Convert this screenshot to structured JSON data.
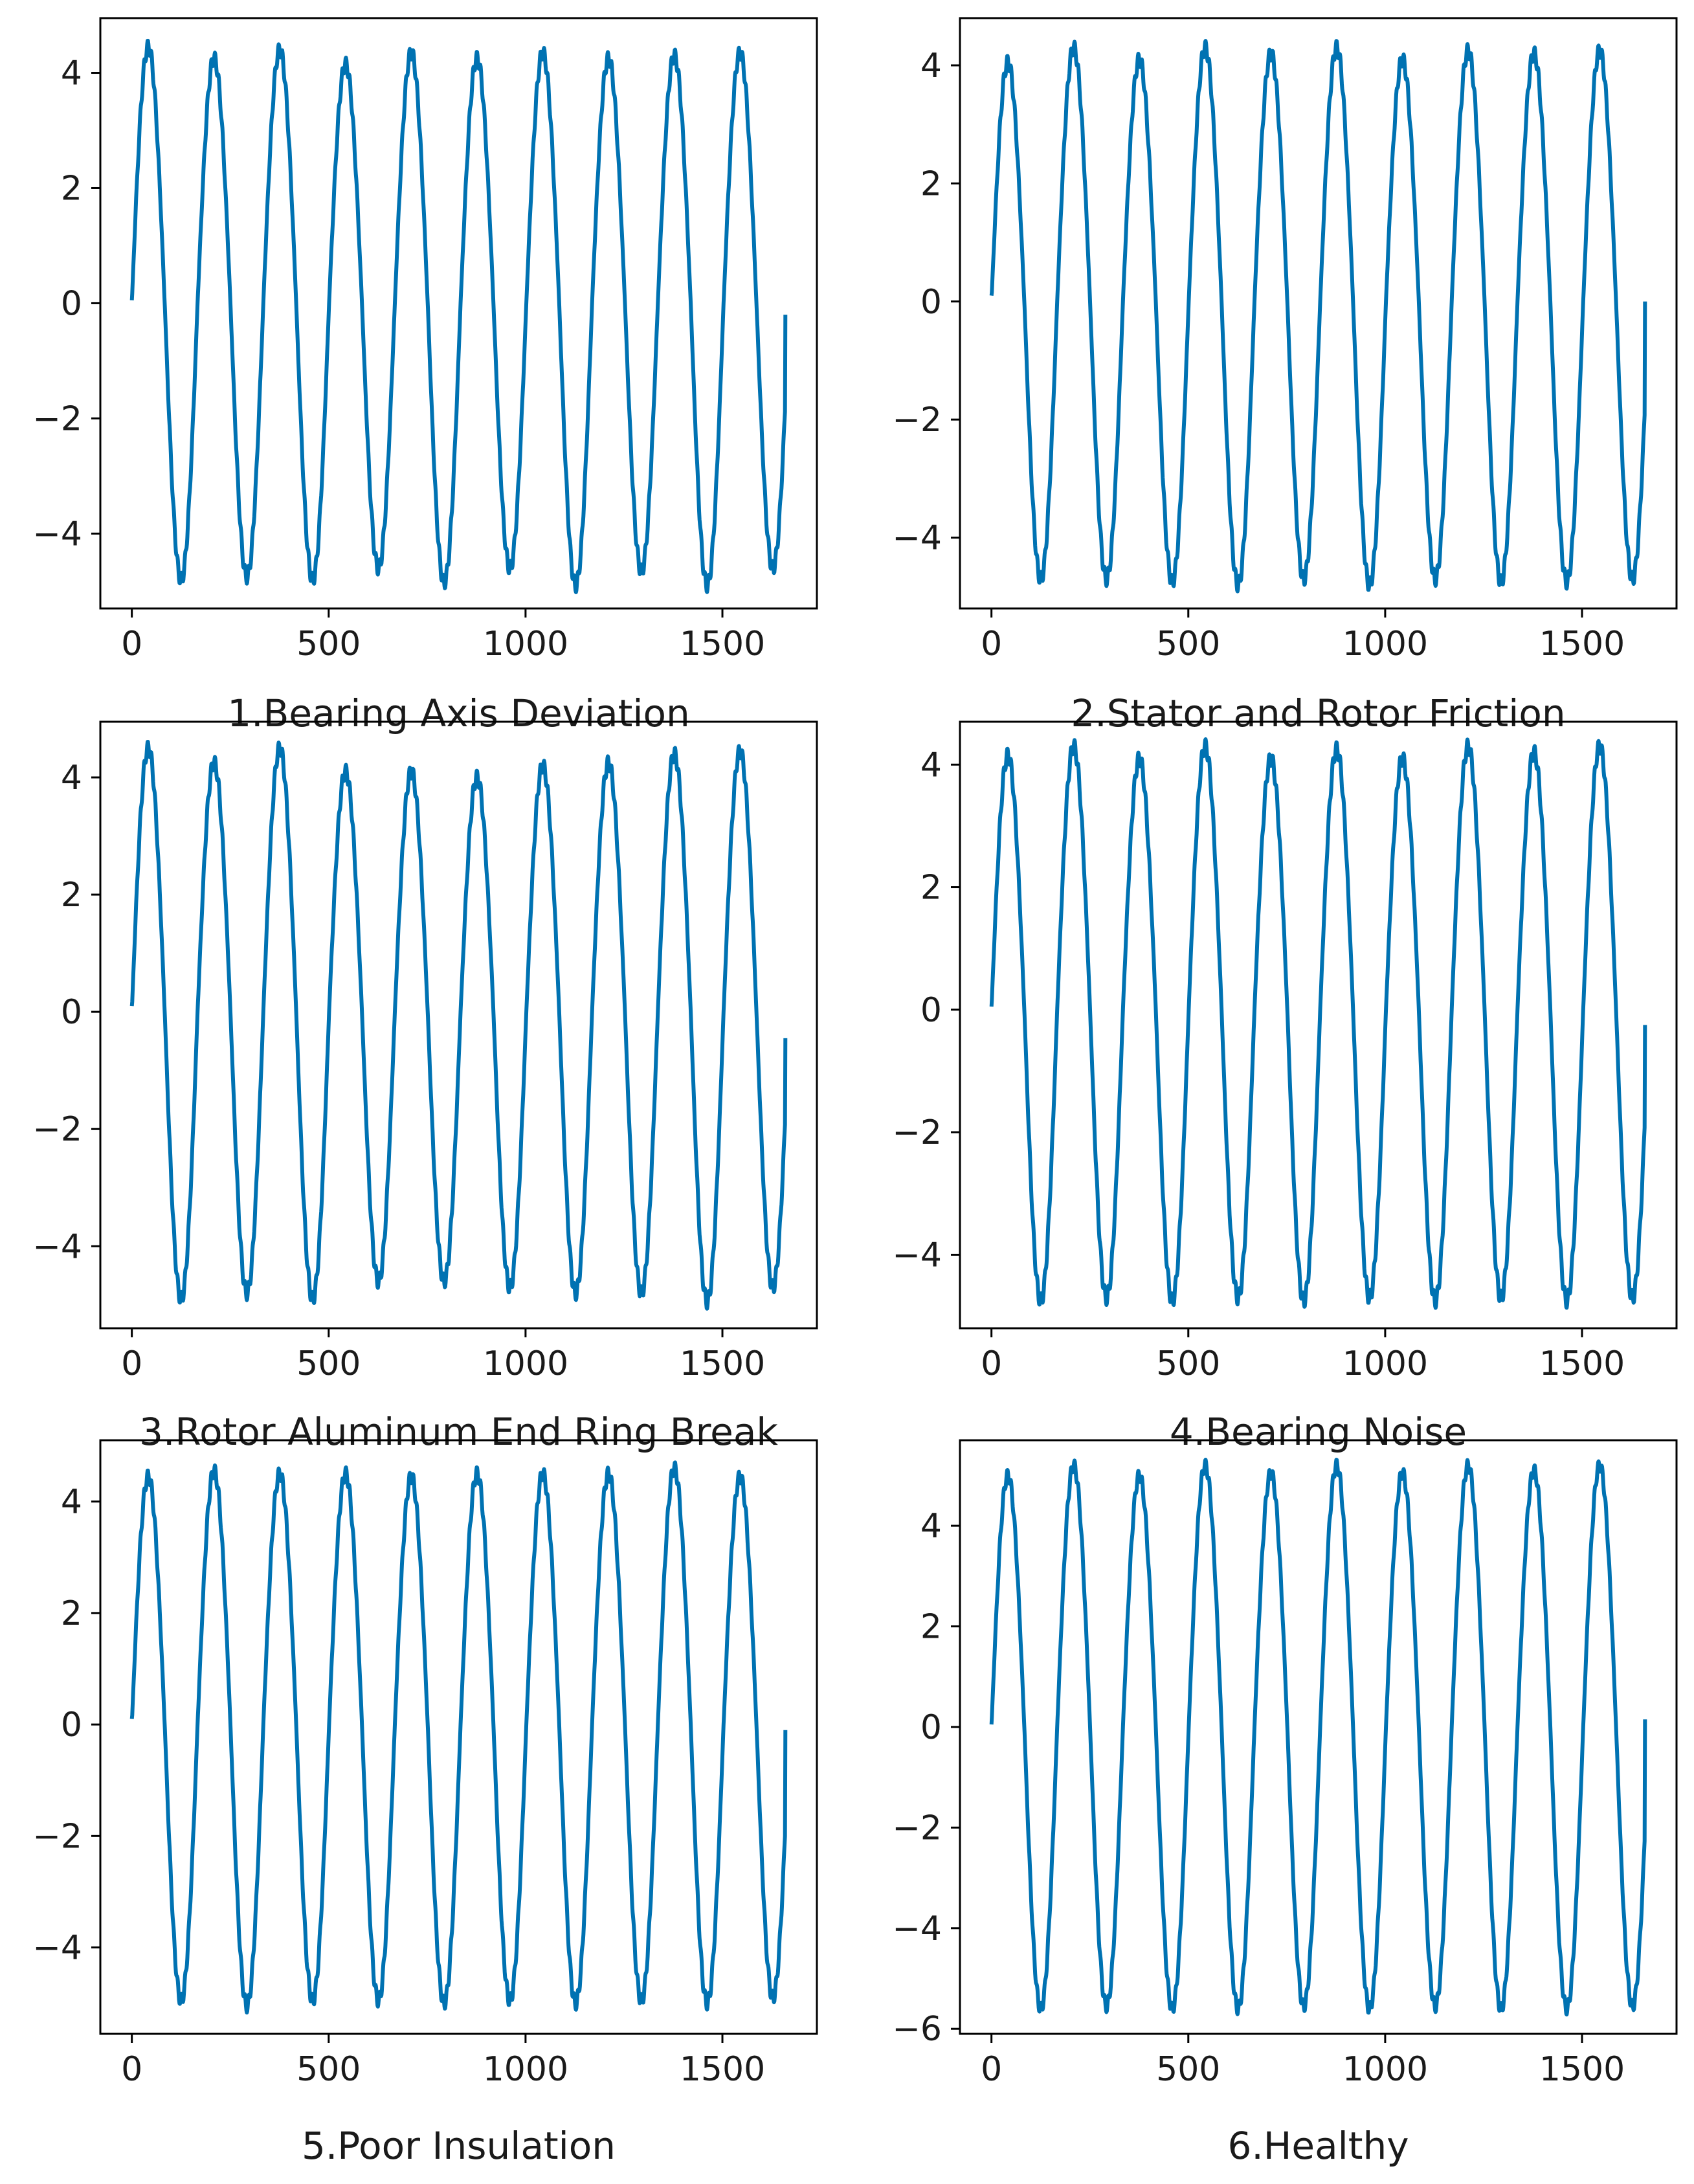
{
  "chart_data": [
    {
      "type": "line",
      "title": "",
      "caption": "1.Bearing Axis Deviation",
      "xlabel": "",
      "ylabel": "",
      "xlim": [
        -80,
        1740
      ],
      "ylim": [
        -5.3,
        4.95
      ],
      "xticks": [
        0,
        500,
        1000,
        1500
      ],
      "yticks": [
        -4,
        -2,
        0,
        2,
        4
      ],
      "grid": false,
      "color": "#0072b2",
      "series": [
        {
          "start": 0,
          "end": 1660,
          "period": 167,
          "start_value": 0.05,
          "end_value": -0.2,
          "peaks": [
            4.45,
            4.25,
            4.4,
            4.15,
            4.35,
            4.25,
            4.35,
            4.25,
            4.3,
            4.35
          ],
          "troughs": [
            -4.8,
            -4.75,
            -4.8,
            -4.6,
            -4.85,
            -4.6,
            -4.9,
            -4.65,
            -4.9,
            -4.6
          ]
        }
      ]
    },
    {
      "type": "line",
      "title": "",
      "caption": "2.Stator and Rotor Friction",
      "xlabel": "",
      "ylabel": "",
      "xlim": [
        -80,
        1740
      ],
      "ylim": [
        -5.2,
        4.8
      ],
      "xticks": [
        0,
        500,
        1000,
        1500
      ],
      "yticks": [
        -4,
        -2,
        0,
        2,
        4
      ],
      "grid": false,
      "color": "#0072b2",
      "series": [
        {
          "start": 0,
          "end": 1660,
          "period": 167,
          "start_value": 0.1,
          "end_value": 0.0,
          "peaks": [
            4.05,
            4.3,
            4.1,
            4.3,
            4.2,
            4.3,
            4.1,
            4.25,
            4.2,
            4.25
          ],
          "troughs": [
            -4.7,
            -4.7,
            -4.75,
            -4.8,
            -4.7,
            -4.8,
            -4.7,
            -4.75,
            -4.75,
            -4.7
          ]
        }
      ]
    },
    {
      "type": "line",
      "title": "",
      "caption": "3.Rotor Aluminum End Ring Break",
      "xlabel": "",
      "ylabel": "",
      "xlim": [
        -80,
        1740
      ],
      "ylim": [
        -5.4,
        4.95
      ],
      "xticks": [
        0,
        500,
        1000,
        1500
      ],
      "yticks": [
        -4,
        -2,
        0,
        2,
        4
      ],
      "grid": false,
      "color": "#0072b2",
      "series": [
        {
          "start": 0,
          "end": 1660,
          "period": 167,
          "start_value": 0.1,
          "end_value": -0.45,
          "peaks": [
            4.5,
            4.25,
            4.5,
            4.1,
            4.1,
            4.0,
            4.2,
            4.25,
            4.4,
            4.45
          ],
          "troughs": [
            -4.9,
            -4.8,
            -4.9,
            -4.6,
            -4.6,
            -4.7,
            -4.8,
            -4.8,
            -4.95,
            -4.7
          ]
        }
      ]
    },
    {
      "type": "line",
      "title": "",
      "caption": "4.Bearing Noise",
      "xlabel": "",
      "ylabel": "",
      "xlim": [
        -80,
        1740
      ],
      "ylim": [
        -5.2,
        4.7
      ],
      "xticks": [
        0,
        500,
        1000,
        1500
      ],
      "yticks": [
        -4,
        -2,
        0,
        2,
        4
      ],
      "grid": false,
      "color": "#0072b2",
      "series": [
        {
          "start": 0,
          "end": 1660,
          "period": 167,
          "start_value": 0.05,
          "end_value": -0.25,
          "peaks": [
            4.15,
            4.3,
            4.1,
            4.3,
            4.1,
            4.25,
            4.1,
            4.3,
            4.2,
            4.3
          ],
          "troughs": [
            -4.75,
            -4.7,
            -4.75,
            -4.7,
            -4.75,
            -4.7,
            -4.75,
            -4.7,
            -4.75,
            -4.7
          ]
        }
      ]
    },
    {
      "type": "line",
      "title": "",
      "caption": "5.Poor Insulation",
      "xlabel": "",
      "ylabel": "",
      "xlim": [
        -80,
        1740
      ],
      "ylim": [
        -5.55,
        5.1
      ],
      "xticks": [
        0,
        500,
        1000,
        1500
      ],
      "yticks": [
        -4,
        -2,
        0,
        2,
        4
      ],
      "grid": false,
      "color": "#0072b2",
      "series": [
        {
          "start": 0,
          "end": 1660,
          "period": 167,
          "start_value": 0.1,
          "end_value": -0.1,
          "peaks": [
            4.45,
            4.55,
            4.5,
            4.5,
            4.45,
            4.5,
            4.5,
            4.5,
            4.6,
            4.45
          ],
          "troughs": [
            -4.95,
            -5.05,
            -4.95,
            -4.95,
            -5.0,
            -4.95,
            -5.0,
            -4.95,
            -5.0,
            -4.9
          ]
        }
      ]
    },
    {
      "type": "line",
      "title": "",
      "caption": "6.Healthy",
      "xlabel": "",
      "ylabel": "",
      "xlim": [
        -80,
        1740
      ],
      "ylim": [
        -6.1,
        5.7
      ],
      "xticks": [
        0,
        500,
        1000,
        1500
      ],
      "yticks": [
        -6,
        -4,
        -2,
        0,
        2,
        4
      ],
      "grid": false,
      "color": "#0072b2",
      "series": [
        {
          "start": 0,
          "end": 1660,
          "period": 167,
          "start_value": 0.05,
          "end_value": 0.15,
          "peaks": [
            5.0,
            5.2,
            5.0,
            5.2,
            5.05,
            5.2,
            5.05,
            5.2,
            5.1,
            5.2
          ],
          "troughs": [
            -5.6,
            -5.55,
            -5.6,
            -5.6,
            -5.55,
            -5.6,
            -5.55,
            -5.6,
            -5.6,
            -5.55
          ]
        }
      ]
    }
  ]
}
